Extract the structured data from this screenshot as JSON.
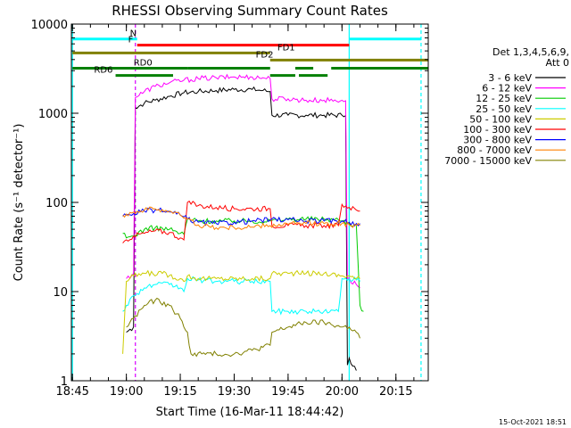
{
  "chart_data": {
    "type": "line",
    "title": "RHESSI Observing Summary Count Rates",
    "xlabel": "Start Time (16-Mar-11 18:44:42)",
    "ylabel": "Count Rate (s⁻¹ detector⁻¹)",
    "y_scale": "log",
    "xlim": [
      "18:44:42",
      "20:24:00"
    ],
    "ylim": [
      1,
      10000
    ],
    "x_ticks": [
      "18:45",
      "19:00",
      "19:15",
      "19:30",
      "19:45",
      "20:00",
      "20:15"
    ],
    "y_ticks": [
      "1",
      "10",
      "100",
      "1000",
      "10000"
    ],
    "legend_title": [
      "Det 1,3,4,5,6,9,",
      "Att 0"
    ],
    "legend_position": "right",
    "timestamp": "15-Oct-2021 18:51",
    "series": [
      {
        "name": "3 - 6 keV",
        "color": "#000000",
        "points": [
          [
            "19:00",
            3.5
          ],
          [
            "19:02",
            4
          ],
          [
            "19:02:30",
            1150
          ],
          [
            "19:05",
            1300
          ],
          [
            "19:08",
            1400
          ],
          [
            "19:12",
            1550
          ],
          [
            "19:16",
            1700
          ],
          [
            "19:20",
            1750
          ],
          [
            "19:25",
            1800
          ],
          [
            "19:30",
            1850
          ],
          [
            "19:35",
            1850
          ],
          [
            "19:38",
            1800
          ],
          [
            "19:40",
            1750
          ],
          [
            "19:40:30",
            950
          ],
          [
            "19:45",
            950
          ],
          [
            "19:50",
            950
          ],
          [
            "19:55",
            950
          ],
          [
            "20:00",
            950
          ],
          [
            "20:01",
            940
          ],
          [
            "20:01:30",
            1.5
          ],
          [
            "20:02",
            1.8
          ],
          [
            "20:04",
            1.3
          ]
        ]
      },
      {
        "name": "6 - 12 keV",
        "color": "#ff00ff",
        "points": [
          [
            "19:00",
            14
          ],
          [
            "19:02",
            16
          ],
          [
            "19:02:30",
            1500
          ],
          [
            "19:05",
            1750
          ],
          [
            "19:08",
            2000
          ],
          [
            "19:12",
            2200
          ],
          [
            "19:16",
            2350
          ],
          [
            "19:20",
            2450
          ],
          [
            "19:25",
            2500
          ],
          [
            "19:30",
            2550
          ],
          [
            "19:35",
            2550
          ],
          [
            "19:38",
            2500
          ],
          [
            "19:40",
            2450
          ],
          [
            "19:40:30",
            1450
          ],
          [
            "19:45",
            1450
          ],
          [
            "19:50",
            1400
          ],
          [
            "19:55",
            1400
          ],
          [
            "20:00",
            1400
          ],
          [
            "20:01",
            1380
          ],
          [
            "20:01:30",
            14
          ],
          [
            "20:04",
            12
          ],
          [
            "20:05",
            11
          ]
        ]
      },
      {
        "name": "12 - 25 keV",
        "color": "#00cc00",
        "points": [
          [
            "18:59",
            45
          ],
          [
            "19:00",
            40
          ],
          [
            "19:02",
            42
          ],
          [
            "19:05",
            50
          ],
          [
            "19:08",
            52
          ],
          [
            "19:12",
            50
          ],
          [
            "19:15",
            45
          ],
          [
            "19:16",
            44
          ],
          [
            "19:17",
            65
          ],
          [
            "19:20",
            62
          ],
          [
            "19:25",
            62
          ],
          [
            "19:30",
            62
          ],
          [
            "19:35",
            62
          ],
          [
            "19:40",
            62
          ],
          [
            "19:45",
            65
          ],
          [
            "19:50",
            65
          ],
          [
            "19:55",
            65
          ],
          [
            "19:59",
            64
          ],
          [
            "20:00",
            62
          ],
          [
            "20:02",
            58
          ],
          [
            "20:04",
            55
          ],
          [
            "20:05",
            7
          ],
          [
            "20:06",
            6
          ]
        ]
      },
      {
        "name": "25 - 50 keV",
        "color": "#00ffff",
        "points": [
          [
            "18:59",
            6
          ],
          [
            "19:00",
            7
          ],
          [
            "19:02",
            9
          ],
          [
            "19:05",
            11
          ],
          [
            "19:08",
            12
          ],
          [
            "19:12",
            12
          ],
          [
            "19:15",
            11
          ],
          [
            "19:16",
            10
          ],
          [
            "19:17",
            14
          ],
          [
            "19:20",
            13.5
          ],
          [
            "19:25",
            13
          ],
          [
            "19:30",
            13
          ],
          [
            "19:35",
            13
          ],
          [
            "19:40",
            13
          ],
          [
            "19:40:30",
            6
          ],
          [
            "19:45",
            6
          ],
          [
            "19:50",
            6
          ],
          [
            "19:55",
            6
          ],
          [
            "19:59",
            6
          ],
          [
            "20:00",
            14
          ],
          [
            "20:02",
            14
          ],
          [
            "20:04",
            13.5
          ],
          [
            "20:05",
            13
          ]
        ]
      },
      {
        "name": "50 - 100 keV",
        "color": "#cccc00",
        "points": [
          [
            "18:59",
            2
          ],
          [
            "19:00",
            13
          ],
          [
            "19:02",
            15
          ],
          [
            "19:05",
            16
          ],
          [
            "19:10",
            16
          ],
          [
            "19:15",
            14
          ],
          [
            "19:16",
            13
          ],
          [
            "19:17",
            15
          ],
          [
            "19:20",
            14
          ],
          [
            "19:25",
            14
          ],
          [
            "19:30",
            14
          ],
          [
            "19:35",
            14
          ],
          [
            "19:40",
            14
          ],
          [
            "19:40:30",
            16
          ],
          [
            "19:45",
            16
          ],
          [
            "19:50",
            16
          ],
          [
            "19:55",
            16
          ],
          [
            "20:00",
            15
          ],
          [
            "20:02",
            15
          ],
          [
            "20:04",
            14
          ],
          [
            "20:05",
            14
          ]
        ]
      },
      {
        "name": "100 - 300 keV",
        "color": "#ff0000",
        "points": [
          [
            "18:59",
            35
          ],
          [
            "19:00",
            38
          ],
          [
            "19:02",
            42
          ],
          [
            "19:05",
            45
          ],
          [
            "19:08",
            48
          ],
          [
            "19:12",
            46
          ],
          [
            "19:15",
            40
          ],
          [
            "19:16",
            38
          ],
          [
            "19:17",
            100
          ],
          [
            "19:20",
            92
          ],
          [
            "19:25",
            88
          ],
          [
            "19:30",
            85
          ],
          [
            "19:35",
            85
          ],
          [
            "19:40",
            85
          ],
          [
            "19:40:30",
            55
          ],
          [
            "19:45",
            55
          ],
          [
            "19:50",
            55
          ],
          [
            "19:55",
            55
          ],
          [
            "19:59",
            55
          ],
          [
            "20:00",
            95
          ],
          [
            "20:02",
            88
          ],
          [
            "20:04",
            82
          ],
          [
            "20:05",
            80
          ]
        ]
      },
      {
        "name": "300 - 800 keV",
        "color": "#0000ff",
        "points": [
          [
            "18:59",
            70
          ],
          [
            "19:00",
            72
          ],
          [
            "19:02",
            75
          ],
          [
            "19:05",
            80
          ],
          [
            "19:08",
            82
          ],
          [
            "19:12",
            78
          ],
          [
            "19:15",
            72
          ],
          [
            "19:17",
            65
          ],
          [
            "19:20",
            60
          ],
          [
            "19:25",
            58
          ],
          [
            "19:30",
            60
          ],
          [
            "19:35",
            62
          ],
          [
            "19:40",
            64
          ],
          [
            "19:45",
            64
          ],
          [
            "19:50",
            62
          ],
          [
            "19:55",
            62
          ],
          [
            "20:00",
            62
          ],
          [
            "20:02",
            60
          ],
          [
            "20:04",
            58
          ],
          [
            "20:05",
            58
          ]
        ]
      },
      {
        "name": "800 - 7000 keV",
        "color": "#ff8000",
        "points": [
          [
            "18:59",
            72
          ],
          [
            "19:00",
            74
          ],
          [
            "19:02",
            78
          ],
          [
            "19:05",
            82
          ],
          [
            "19:08",
            85
          ],
          [
            "19:12",
            80
          ],
          [
            "19:15",
            72
          ],
          [
            "19:17",
            65
          ],
          [
            "19:20",
            56
          ],
          [
            "19:25",
            52
          ],
          [
            "19:30",
            52
          ],
          [
            "19:35",
            53
          ],
          [
            "19:40",
            55
          ],
          [
            "19:45",
            57
          ],
          [
            "19:50",
            58
          ],
          [
            "19:55",
            58
          ],
          [
            "20:00",
            58
          ],
          [
            "20:02",
            56
          ],
          [
            "20:04",
            55
          ],
          [
            "20:05",
            55
          ]
        ]
      },
      {
        "name": "7000 - 15000 keV",
        "color": "#808000",
        "points": [
          [
            "19:00",
            4
          ],
          [
            "19:02",
            5
          ],
          [
            "19:05",
            7
          ],
          [
            "19:08",
            8
          ],
          [
            "19:12",
            7
          ],
          [
            "19:15",
            5
          ],
          [
            "19:16",
            4
          ],
          [
            "19:17",
            3.5
          ],
          [
            "19:18",
            2
          ],
          [
            "19:25",
            2
          ],
          [
            "19:30",
            2
          ],
          [
            "19:35",
            2.2
          ],
          [
            "19:40",
            2.5
          ],
          [
            "19:40:30",
            3.5
          ],
          [
            "19:45",
            4
          ],
          [
            "19:50",
            4.5
          ],
          [
            "19:55",
            4.5
          ],
          [
            "20:00",
            4
          ],
          [
            "20:02",
            4
          ],
          [
            "20:04",
            3.5
          ],
          [
            "20:05",
            3
          ]
        ]
      }
    ],
    "markers": [
      {
        "label": "N",
        "color": "#00ffff",
        "y": 6800,
        "segments": [
          [
            "18:45",
            "19:03"
          ],
          [
            "20:02",
            "20:22"
          ]
        ],
        "label_time": "19:01"
      },
      {
        "label": "F",
        "color": "#ff0000",
        "y": 5800,
        "segments": [
          [
            "19:03",
            "20:02"
          ]
        ],
        "label_time": "19:00:30"
      },
      {
        "label": "FD1",
        "color": "#808000",
        "y": 4750,
        "segments": [
          [
            "18:45",
            "19:40"
          ]
        ],
        "label_time": "19:42"
      },
      {
        "label": "FD2",
        "color": "#808000",
        "y": 3950,
        "segments": [
          [
            "19:40",
            "20:24"
          ]
        ],
        "label_time": "19:36"
      },
      {
        "label": "RD0",
        "color": "#008000",
        "y": 3200,
        "segments": [
          [
            "18:45",
            "19:17"
          ],
          [
            "19:17",
            "19:40"
          ],
          [
            "19:47",
            "19:52"
          ],
          [
            "19:57",
            "20:24"
          ]
        ],
        "label_time": "19:02"
      },
      {
        "label": "RD6",
        "color": "#008000",
        "y": 2650,
        "segments": [
          [
            "18:57",
            "19:13"
          ],
          [
            "19:40",
            "19:47"
          ],
          [
            "19:48",
            "19:56"
          ]
        ],
        "label_time": "18:51"
      }
    ],
    "vertical_lines": [
      {
        "time": "18:45",
        "color": "#00ffff",
        "style": "solid"
      },
      {
        "time": "19:02:30",
        "color": "#00ffff",
        "style": "dashed"
      },
      {
        "time": "20:02",
        "color": "#00ffff",
        "style": "solid"
      },
      {
        "time": "20:22",
        "color": "#00ffff",
        "style": "dashed"
      },
      {
        "time": "19:02:30",
        "color": "#ff00ff",
        "style": "dashed"
      }
    ]
  }
}
